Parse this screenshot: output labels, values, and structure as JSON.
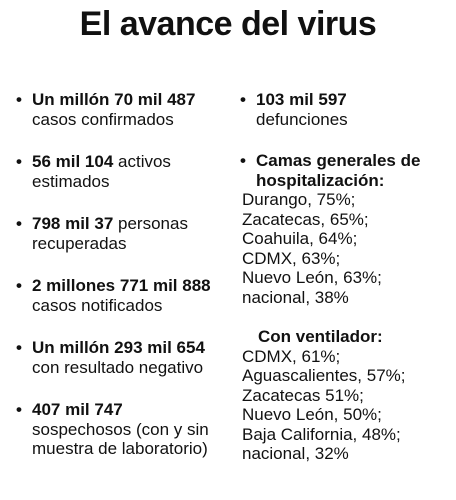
{
  "title": "El avance del virus",
  "left_items": [
    {
      "bold": "Un millón 70 mil 487",
      "rest": "casos confirmados"
    },
    {
      "bold": "56 mil 104",
      "rest": "activos estimados"
    },
    {
      "bold": "798 mil 37",
      "rest": "personas recuperadas"
    },
    {
      "bold": "2 millones 771 mil 888",
      "rest": "casos notificados"
    },
    {
      "bold": "Un millón 293 mil 654",
      "rest": "con resultado negativo"
    },
    {
      "bold": "407 mil 747",
      "rest": "sospechosos (con y sin muestra de laboratorio)"
    }
  ],
  "right": {
    "defunciones": {
      "bold": "103 mil 597",
      "rest": "defunciones"
    },
    "camas_heading": "Camas generales de hospitalización:",
    "camas": [
      "Durango, 75%;",
      "Zacatecas, 65%;",
      "Coahuila, 64%;",
      "CDMX, 63%;",
      "Nuevo León, 63%;",
      "nacional, 38%"
    ],
    "ventilador_heading": "Con ventilador:",
    "ventilador": [
      "CDMX, 61%;",
      "Aguascalientes, 57%;",
      "Zacatecas 51%;",
      "Nuevo León, 50%;",
      "Baja California, 48%;",
      "nacional, 32%"
    ]
  }
}
